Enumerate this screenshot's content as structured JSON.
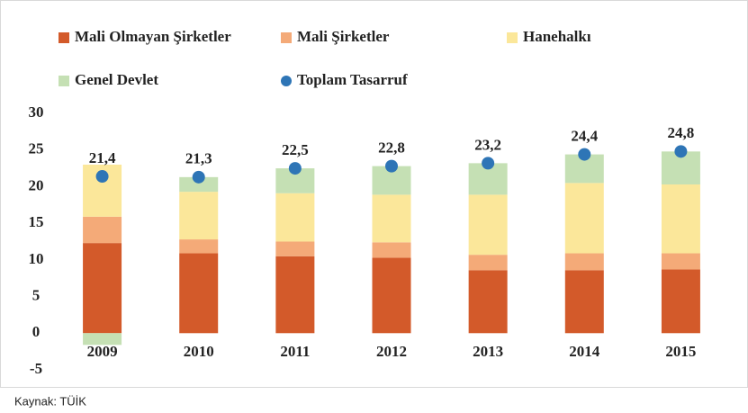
{
  "chart_data": {
    "type": "bar",
    "stacked": true,
    "categories": [
      "2009",
      "2010",
      "2011",
      "2012",
      "2013",
      "2014",
      "2015"
    ],
    "series": [
      {
        "name": "Mali Olmayan Şirketler",
        "color": "#d35a2a",
        "values": [
          12.3,
          10.9,
          10.5,
          10.3,
          8.6,
          8.6,
          8.7
        ]
      },
      {
        "name": "Mali Şirketler",
        "color": "#f4aa78",
        "values": [
          3.6,
          1.9,
          2.0,
          2.1,
          2.1,
          2.3,
          2.2
        ]
      },
      {
        "name": "Hanehalkı",
        "color": "#fbe79a",
        "values": [
          7.1,
          6.5,
          6.6,
          6.5,
          8.2,
          9.6,
          9.4
        ]
      },
      {
        "name": "Genel Devlet",
        "color": "#c5e0b4",
        "values": [
          -1.6,
          2.0,
          3.4,
          3.9,
          4.3,
          3.9,
          4.5
        ]
      },
      {
        "name": "Toplam Tasarruf",
        "type": "scatter",
        "color": "#2e75b6",
        "values": [
          21.4,
          21.3,
          22.5,
          22.8,
          23.2,
          24.4,
          24.8
        ],
        "value_labels": [
          "21,4",
          "21,3",
          "22,5",
          "22,8",
          "23,2",
          "24,4",
          "24,8"
        ]
      }
    ],
    "ylim": [
      -5,
      30
    ],
    "yticks": [
      -5,
      0,
      5,
      10,
      15,
      20,
      25,
      30
    ],
    "grid": false,
    "source": "Kaynak: TÜİK"
  }
}
